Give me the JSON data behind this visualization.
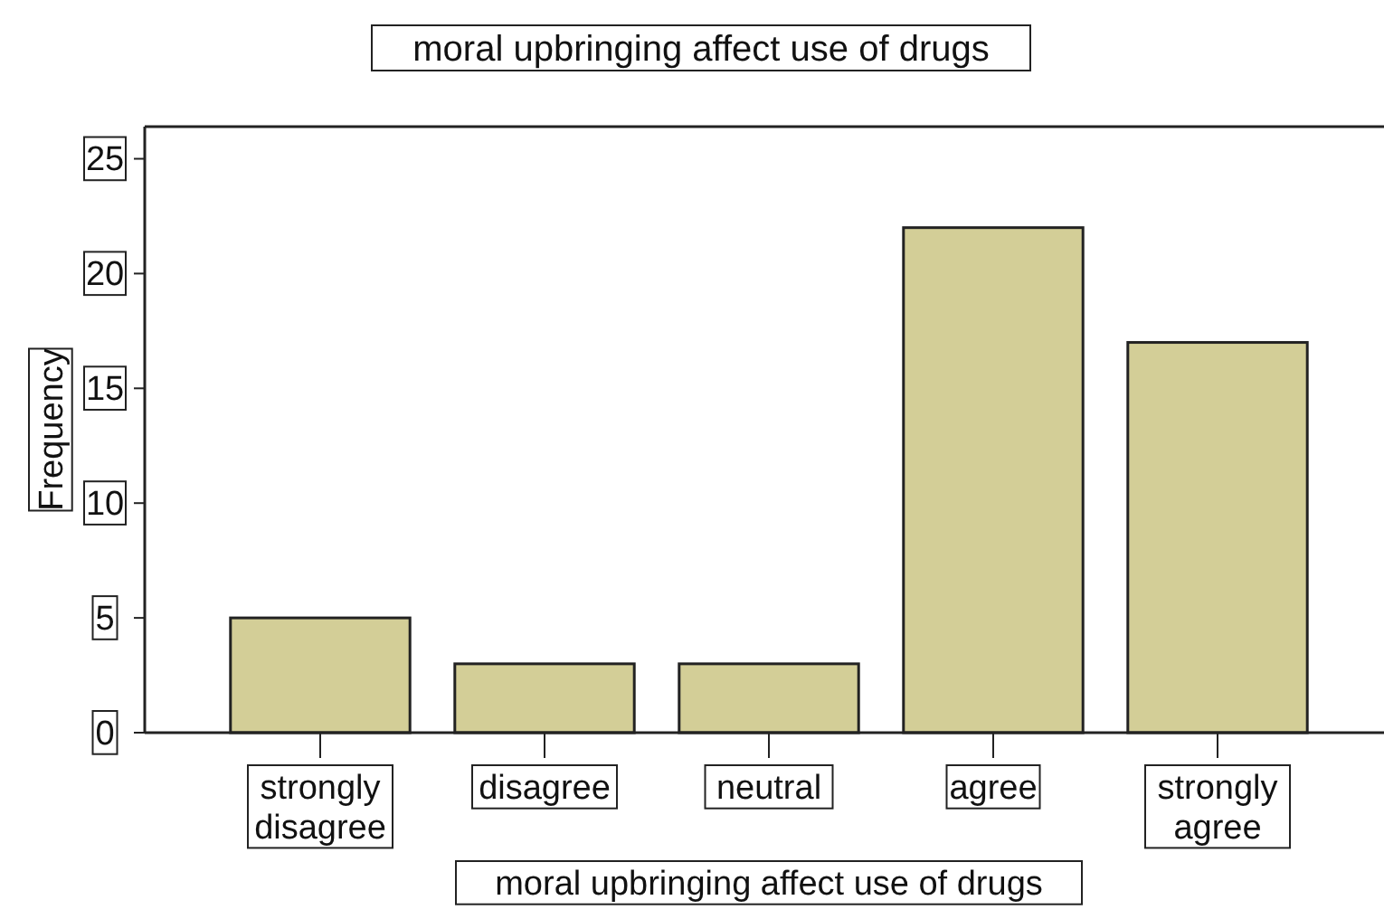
{
  "chart_data": {
    "type": "bar",
    "title": "moral upbringing affect use of drugs",
    "xlabel": "moral upbringing affect use of drugs",
    "ylabel": "Frequency",
    "categories": [
      "strongly disagree",
      "disagree",
      "neutral",
      "agree",
      "strongly agree"
    ],
    "values": [
      5,
      3,
      3,
      22,
      17
    ],
    "color": "#d3ce97",
    "ylim": [
      0,
      26.4
    ],
    "yticks": [
      0,
      5,
      10,
      15,
      20,
      25
    ]
  }
}
